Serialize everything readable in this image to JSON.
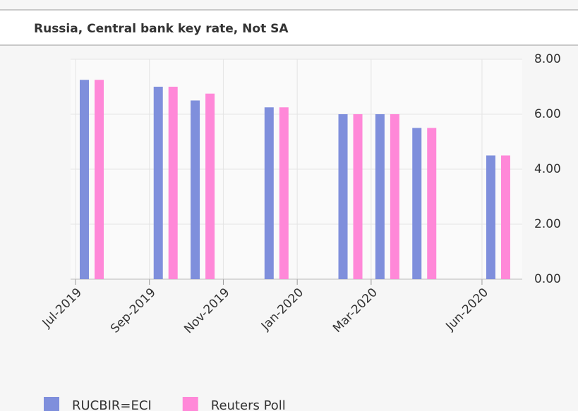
{
  "chart_data": {
    "type": "bar",
    "title": "Russia, Central bank key rate, Not SA",
    "categories": [
      "Jul-2019",
      null,
      "Sep-2019",
      null,
      "Nov-2019",
      null,
      "Jan-2020",
      null,
      "Mar-2020",
      null,
      null,
      "Jun-2020"
    ],
    "series": [
      {
        "name": "RUCBIR=ECI",
        "color": "#7f8fdc",
        "values": [
          7.25,
          null,
          7.0,
          6.5,
          null,
          6.25,
          null,
          6.0,
          6.0,
          5.5,
          null,
          4.5
        ]
      },
      {
        "name": "Reuters Poll",
        "color": "#ff88d8",
        "values": [
          7.25,
          null,
          7.0,
          6.75,
          null,
          6.25,
          null,
          6.0,
          6.0,
          5.5,
          null,
          4.5
        ]
      }
    ],
    "ylim": [
      0,
      8
    ],
    "yticks": [
      {
        "value": 0,
        "label": "0.00"
      },
      {
        "value": 2,
        "label": "2.00"
      },
      {
        "value": 4,
        "label": "4.00"
      },
      {
        "value": 6,
        "label": "6.00"
      },
      {
        "value": 8,
        "label": "8.00"
      }
    ],
    "grid": true,
    "legend": "bottom"
  }
}
